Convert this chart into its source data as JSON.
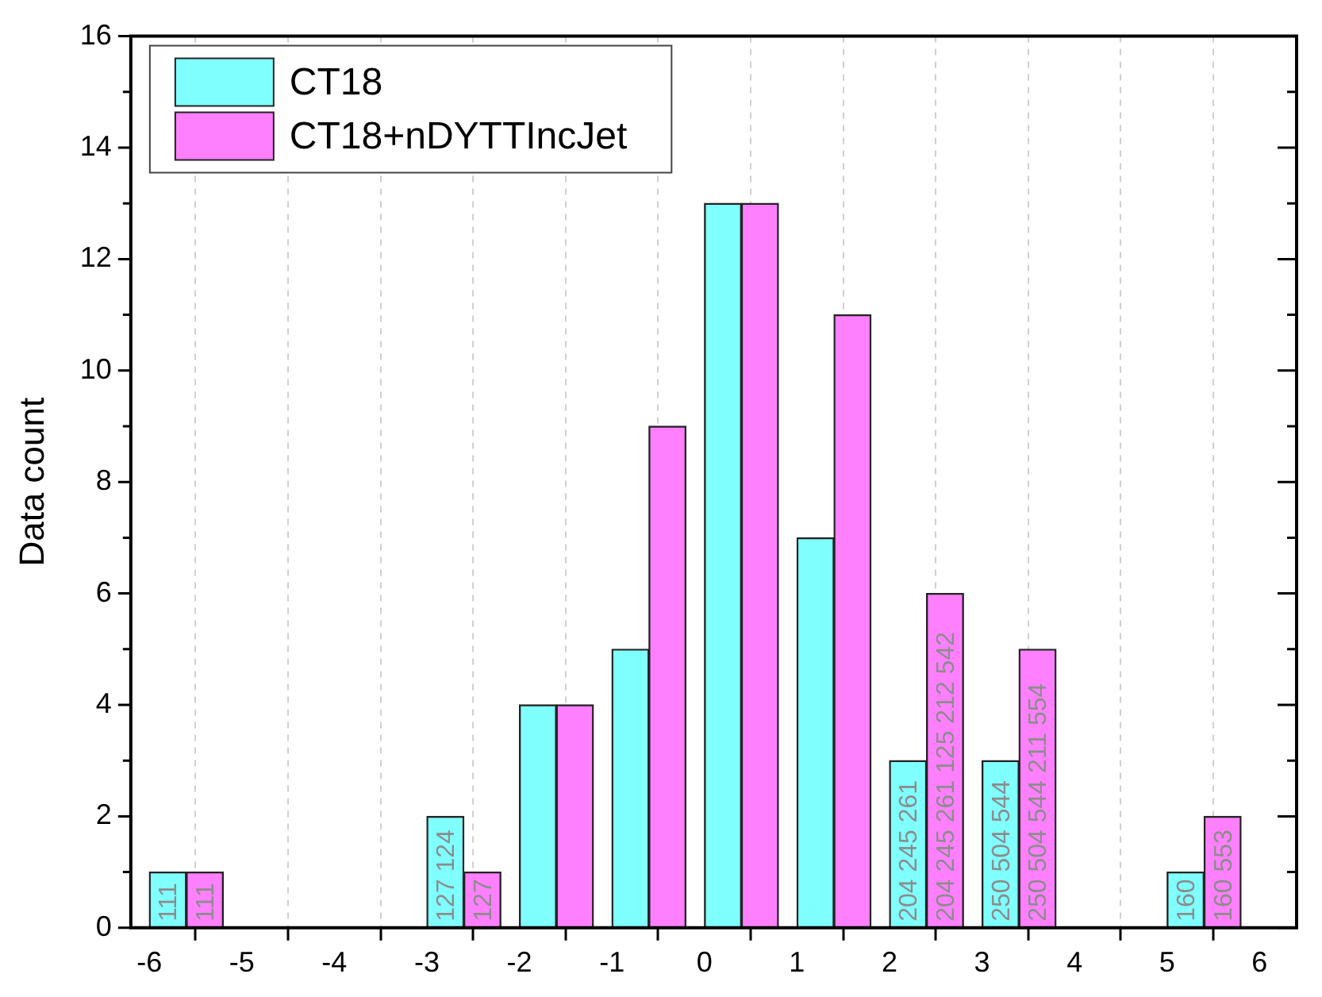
{
  "chart_data": {
    "type": "bar",
    "ylabel": "Data count",
    "series": [
      {
        "name": "CT18",
        "color": "#80ffff",
        "x": [
          -5.8,
          -4.8,
          -3.8,
          -2.8,
          -1.8,
          -0.8,
          0.2,
          1.2,
          2.2,
          3.2,
          4.2,
          5.2
        ],
        "values": [
          1,
          0,
          0,
          2,
          4,
          5,
          13,
          7,
          3,
          3,
          0,
          1
        ]
      },
      {
        "name": "CT18+nDYTTIncJet",
        "color": "#ff80ff",
        "x": [
          -5.4,
          -4.4,
          -3.4,
          -2.4,
          -1.4,
          -0.4,
          0.6,
          1.6,
          2.6,
          3.6,
          4.6,
          5.6
        ],
        "values": [
          1,
          0,
          0,
          1,
          4,
          9,
          13,
          11,
          6,
          5,
          0,
          2
        ]
      }
    ],
    "annotations": [
      {
        "text": "111",
        "x": -5.8,
        "y": 0
      },
      {
        "text": "111",
        "x": -5.4,
        "y": 0
      },
      {
        "text": "127 124",
        "x": -2.8,
        "y": 0
      },
      {
        "text": "127",
        "x": -2.4,
        "y": 0
      },
      {
        "text": "204 245 261",
        "x": 2.2,
        "y": 0
      },
      {
        "text": "204 245 261 125 212 542",
        "x": 2.6,
        "y": 0
      },
      {
        "text": "250 504 544",
        "x": 3.2,
        "y": 0
      },
      {
        "text": "250 504 544 211 554",
        "x": 3.6,
        "y": 0
      },
      {
        "text": "160",
        "x": 5.2,
        "y": 0
      },
      {
        "text": "160 553",
        "x": 5.6,
        "y": 0
      }
    ],
    "xlim": [
      -6.2,
      6.4
    ],
    "xticks": [
      -6,
      -5,
      -4,
      -3,
      -2,
      -1,
      0,
      1,
      2,
      3,
      4,
      5,
      6
    ],
    "ylim": [
      0,
      16
    ],
    "yticks": [
      0,
      2,
      4,
      6,
      8,
      10,
      12,
      14,
      16
    ],
    "grid": "x",
    "legend": "top left"
  }
}
